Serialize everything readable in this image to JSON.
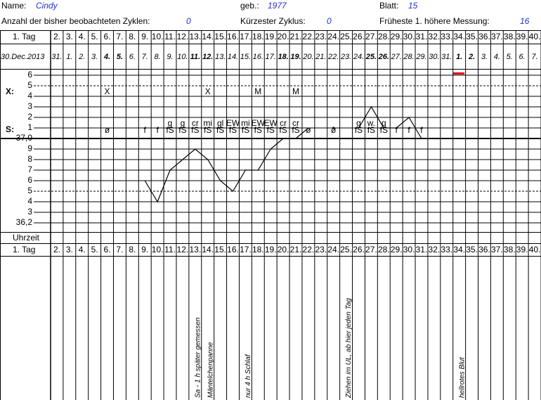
{
  "header": {
    "name_label": "Name:",
    "name": "Cindy",
    "birth_label": "geb.:",
    "birth": 1977,
    "sheet_label": "Blatt:",
    "sheet": 15,
    "cycles_label": "Anzahl der bisher beobachteten Zyklen:",
    "cycles": 0,
    "shortest_label": "Kürzester Zyklus:",
    "shortest": 0,
    "earliest_label": "Früheste 1. höhere Messung:",
    "earliest": 16
  },
  "grid": {
    "first_day_label": "1. Tag",
    "days": [
      "2.",
      "3.",
      "4.",
      "5.",
      "6.",
      "7.",
      "8.",
      "9.",
      "10.",
      "11.",
      "12.",
      "13.",
      "14.",
      "15.",
      "16.",
      "17.",
      "18.",
      "19.",
      "20.",
      "21.",
      "22.",
      "23.",
      "24.",
      "25.",
      "26.",
      "27.",
      "28.",
      "29.",
      "30.",
      "31.",
      "32.",
      "33.",
      "34.",
      "35.",
      "36.",
      "37.",
      "38.",
      "39.",
      "40."
    ],
    "first_date": "30.Dec.2013",
    "dates": [
      {
        "t": "31."
      },
      {
        "t": "1."
      },
      {
        "t": "2."
      },
      {
        "t": "3."
      },
      {
        "t": "4.",
        "b": true
      },
      {
        "t": "5.",
        "b": true
      },
      {
        "t": "6."
      },
      {
        "t": "7."
      },
      {
        "t": "8."
      },
      {
        "t": "9."
      },
      {
        "t": "10."
      },
      {
        "t": "11.",
        "b": true
      },
      {
        "t": "12.",
        "b": true
      },
      {
        "t": "13."
      },
      {
        "t": "14."
      },
      {
        "t": "15."
      },
      {
        "t": "16."
      },
      {
        "t": "17."
      },
      {
        "t": "18.",
        "b": true
      },
      {
        "t": "19.",
        "b": true
      },
      {
        "t": "20."
      },
      {
        "t": "21."
      },
      {
        "t": "22."
      },
      {
        "t": "23."
      },
      {
        "t": "24."
      },
      {
        "t": "25.",
        "b": true
      },
      {
        "t": "26.",
        "b": true
      },
      {
        "t": "27."
      },
      {
        "t": "28."
      },
      {
        "t": "29."
      },
      {
        "t": "30."
      },
      {
        "t": "31."
      },
      {
        "t": "1.",
        "b": true
      },
      {
        "t": "2.",
        "b": true
      },
      {
        "t": "3."
      },
      {
        "t": "4."
      },
      {
        "t": "5."
      },
      {
        "t": "6."
      },
      {
        "t": "7."
      }
    ],
    "x_label": "X:",
    "s_label": "S:",
    "time_label": "Uhrzeit",
    "temp_ticks": [
      {
        "value": 37.6,
        "label": "6"
      },
      {
        "value": 37.5,
        "label": "5",
        "dashed": true
      },
      {
        "value": 37.4,
        "label": "4"
      },
      {
        "value": 37.3,
        "label": "3"
      },
      {
        "value": 37.2,
        "label": "2"
      },
      {
        "value": 37.1,
        "label": "1"
      },
      {
        "value": 37.0,
        "label": "37,0",
        "thick": true
      },
      {
        "value": 36.9,
        "label": "9"
      },
      {
        "value": 36.8,
        "label": "8"
      },
      {
        "value": 36.7,
        "label": "7"
      },
      {
        "value": 36.6,
        "label": "6"
      },
      {
        "value": 36.5,
        "label": "5",
        "dashed": true
      },
      {
        "value": 36.4,
        "label": "4"
      },
      {
        "value": 36.3,
        "label": "3"
      },
      {
        "value": 36.2,
        "label": "36,2"
      }
    ],
    "x_row": [
      null,
      null,
      null,
      null,
      "X",
      null,
      null,
      null,
      null,
      null,
      null,
      null,
      "X",
      null,
      null,
      null,
      "M",
      null,
      null,
      "M",
      null,
      null,
      null,
      null,
      null,
      null,
      null,
      null,
      null,
      null,
      null,
      null,
      null,
      null,
      null,
      null,
      null,
      null,
      null
    ],
    "s_row": [
      null,
      null,
      null,
      null,
      {
        "s": "ø",
        "faded": true
      },
      null,
      null,
      {
        "s": "f"
      },
      {
        "s": "f"
      },
      {
        "s": "fS",
        "sup": "g"
      },
      {
        "s": "fS",
        "sup": "g"
      },
      {
        "s": "fS",
        "sup": "cr"
      },
      {
        "s": "fS",
        "sup": "mi"
      },
      {
        "s": "fS",
        "sup": "gl"
      },
      {
        "s": "fS",
        "sup": "EW"
      },
      {
        "s": "fS",
        "sup": "mi"
      },
      {
        "s": "fS",
        "sup": "EW"
      },
      {
        "s": "fS",
        "sup": "EW"
      },
      {
        "s": "fS",
        "sup": "cr"
      },
      {
        "s": "fS",
        "sup": "cr"
      },
      {
        "s": "ø",
        "faded": true
      },
      null,
      {
        "s": "ø",
        "faded": true
      },
      null,
      {
        "s": "fS",
        "sup": "g"
      },
      {
        "s": "fS",
        "sup": "w."
      },
      {
        "s": "fS",
        "sup": "g"
      },
      {
        "s": "f"
      },
      {
        "s": "f"
      },
      {
        "s": "f"
      },
      null,
      null,
      null,
      null,
      null,
      null,
      null,
      null,
      null
    ],
    "temperatures": [
      null,
      null,
      null,
      null,
      null,
      null,
      null,
      36.6,
      36.4,
      36.7,
      36.8,
      36.9,
      36.8,
      36.6,
      36.5,
      36.7,
      36.7,
      36.9,
      37.0,
      37.0,
      37.1,
      null,
      37.1,
      null,
      37.1,
      37.3,
      37.1,
      37.1,
      37.2,
      37.0,
      null,
      null,
      null,
      null,
      null,
      null,
      null,
      null,
      null
    ],
    "notes": [
      null,
      null,
      null,
      null,
      null,
      null,
      null,
      null,
      null,
      null,
      null,
      "Sa - 1 h später gemessen",
      "Mäntelchenpanne",
      null,
      null,
      "nur 4 h Schlaf",
      null,
      null,
      null,
      null,
      null,
      null,
      null,
      "Ziehen im UL, ab hier jeden Tag",
      null,
      null,
      null,
      null,
      null,
      null,
      null,
      null,
      "hellrotes Blut",
      null,
      null,
      null,
      null,
      null,
      null
    ]
  }
}
